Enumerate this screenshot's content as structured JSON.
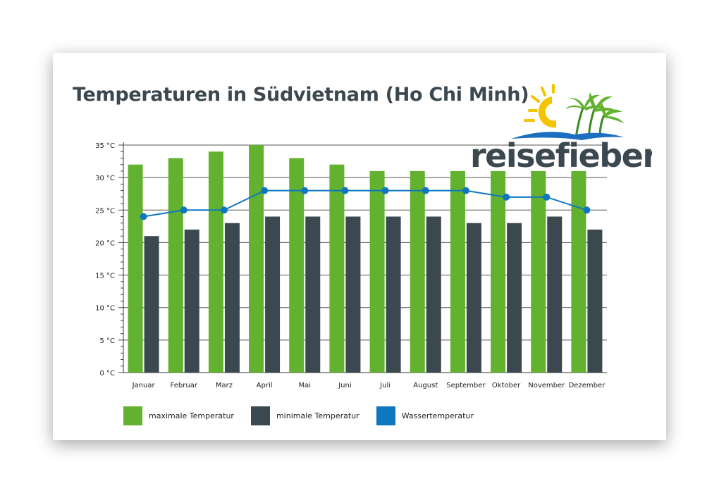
{
  "chart_data": {
    "type": "bar",
    "title": "Temperaturen in Südvietnam (Ho Chi Minh)",
    "categories": [
      "Januar",
      "Februar",
      "Marz",
      "April",
      "Mai",
      "Juni",
      "Juli",
      "August",
      "September",
      "Oktober",
      "November",
      "Dezember"
    ],
    "series": [
      {
        "name": "maximale Temperatur",
        "type": "bar",
        "color": "#62b22f",
        "values": [
          32,
          33,
          34,
          35,
          33,
          32,
          31,
          31,
          31,
          31,
          31,
          31
        ]
      },
      {
        "name": "minimale Temperatur",
        "type": "bar",
        "color": "#3b4850",
        "values": [
          21,
          22,
          23,
          24,
          24,
          24,
          24,
          24,
          23,
          23,
          24,
          22
        ]
      },
      {
        "name": "Wassertemperatur",
        "type": "line",
        "color": "#0f77c0",
        "values": [
          24,
          25,
          25,
          28,
          28,
          28,
          28,
          28,
          28,
          27,
          27,
          25
        ]
      }
    ],
    "ylim": [
      0,
      35
    ],
    "y_ticks": [
      0,
      5,
      10,
      15,
      20,
      25,
      30,
      35
    ],
    "y_tick_labels": [
      "0 °C",
      "5 °C",
      "10 °C",
      "15 °C",
      "20 °C",
      "25 °C",
      "30 °C",
      "35 °C"
    ],
    "xlabel": "",
    "ylabel": "",
    "grid": true,
    "legend_position": "bottom-left"
  },
  "brand": {
    "name": "reisefieber",
    "text_color": "#3b4850",
    "sun_color": "#f5c400",
    "palm_color": "#62b22f",
    "water_color": "#1a6fc0"
  }
}
